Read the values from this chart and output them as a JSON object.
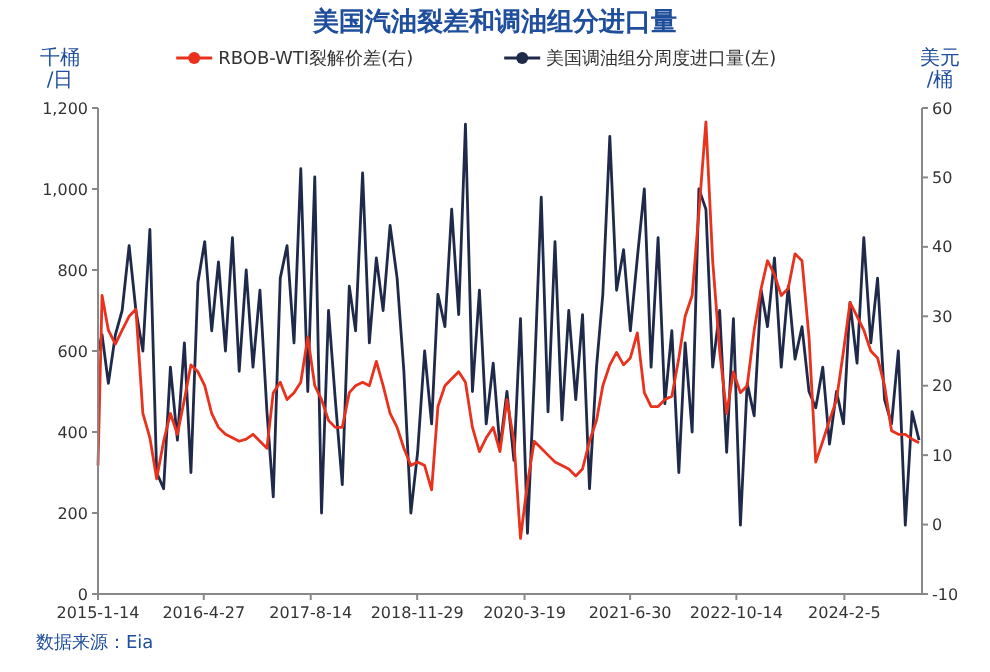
{
  "chart_data": {
    "type": "line",
    "title": "美国汽油裂差和调油组分进口量",
    "ylabel": "千桶/日",
    "y2label": "美元/桶",
    "legend": "top",
    "annotations": [
      "数据来源：Eia"
    ],
    "x": [
      "2015-01-14",
      "2015-02",
      "2015-03",
      "2015-04",
      "2015-05",
      "2015-06",
      "2015-07",
      "2015-08",
      "2015-09",
      "2015-10",
      "2015-11",
      "2015-12",
      "2016-01",
      "2016-02",
      "2016-03",
      "2016-04",
      "2016-05",
      "2016-06",
      "2016-07",
      "2016-08",
      "2016-09",
      "2016-10",
      "2016-11",
      "2016-12",
      "2017-01",
      "2017-02",
      "2017-03",
      "2017-04",
      "2017-05",
      "2017-06",
      "2017-07",
      "2017-08",
      "2017-09",
      "2017-10",
      "2017-11",
      "2017-12",
      "2018-01",
      "2018-02",
      "2018-03",
      "2018-04",
      "2018-05",
      "2018-06",
      "2018-07",
      "2018-08",
      "2018-09",
      "2018-10",
      "2018-11",
      "2018-12",
      "2019-01",
      "2019-02",
      "2019-03",
      "2019-04",
      "2019-05",
      "2019-06",
      "2019-07",
      "2019-08",
      "2019-09",
      "2019-10",
      "2019-11",
      "2019-12",
      "2020-01",
      "2020-02",
      "2020-03",
      "2020-04",
      "2020-05",
      "2020-06",
      "2020-07",
      "2020-08",
      "2020-09",
      "2020-10",
      "2020-11",
      "2020-12",
      "2021-01",
      "2021-02",
      "2021-03",
      "2021-04",
      "2021-05",
      "2021-06",
      "2021-07",
      "2021-08",
      "2021-09",
      "2021-10",
      "2021-11",
      "2021-12",
      "2022-01",
      "2022-02",
      "2022-03",
      "2022-04",
      "2022-05",
      "2022-06",
      "2022-07",
      "2022-08",
      "2022-09",
      "2022-10",
      "2022-11",
      "2022-12",
      "2023-01",
      "2023-02",
      "2023-03",
      "2023-04",
      "2023-05",
      "2023-06",
      "2023-07",
      "2023-08",
      "2023-09",
      "2023-10",
      "2023-11",
      "2023-12",
      "2024-01",
      "2024-02",
      "2024-03",
      "2024-04",
      "2024-05",
      "2024-06",
      "2024-07",
      "2024-08",
      "2024-09",
      "2024-10",
      "2024-11",
      "2024-12",
      "2025-01"
    ],
    "series": [
      {
        "name": "RBOB-WTI裂解价差(右)",
        "color": "#e8321e",
        "axis": "y2",
        "values": [
          8.5,
          33,
          28,
          26,
          28,
          30,
          31,
          16,
          12.5,
          6.6,
          12,
          16,
          13,
          18,
          23,
          22,
          20,
          16,
          14,
          13,
          12.5,
          12,
          12.3,
          13,
          12,
          11,
          19,
          20.5,
          18,
          19,
          20.5,
          27,
          20,
          18,
          15,
          14,
          14,
          19,
          20,
          20.5,
          20,
          23.5,
          20,
          16,
          14,
          11,
          8.5,
          9,
          8.5,
          5,
          17,
          20,
          21,
          22,
          20.5,
          14,
          10.5,
          12.5,
          14,
          10.5,
          18,
          12,
          -2,
          6,
          12,
          11,
          10,
          9,
          8.5,
          8,
          7,
          8,
          12,
          15,
          20,
          23,
          24.8,
          23,
          24,
          27.6,
          19,
          17,
          17,
          18,
          18.5,
          24,
          30,
          33,
          45,
          58,
          38,
          25,
          16,
          22,
          19,
          20,
          28,
          34,
          38,
          36,
          33,
          34,
          39,
          38,
          27,
          9,
          12,
          15,
          18,
          25,
          32,
          30,
          28,
          25,
          24,
          20,
          13.5,
          13,
          13,
          12.3,
          11.8
        ]
      },
      {
        "name": "美国调油组分周度进口量(左)",
        "color": "#1f2a4a",
        "values": [
          600,
          640,
          520,
          640,
          700,
          860,
          700,
          600,
          900,
          300,
          260,
          560,
          380,
          620,
          300,
          770,
          870,
          650,
          820,
          600,
          880,
          550,
          800,
          560,
          750,
          450,
          240,
          780,
          860,
          620,
          1050,
          500,
          1030,
          200,
          700,
          480,
          270,
          760,
          650,
          1040,
          620,
          830,
          700,
          910,
          780,
          550,
          200,
          350,
          600,
          420,
          740,
          660,
          950,
          690,
          1160,
          500,
          750,
          420,
          570,
          360,
          500,
          330,
          680,
          150,
          530,
          980,
          450,
          870,
          430,
          700,
          480,
          690,
          260,
          560,
          740,
          1130,
          750,
          850,
          650,
          830,
          1000,
          560,
          880,
          470,
          650,
          300,
          620,
          400,
          1000,
          950,
          560,
          700,
          350,
          680,
          170,
          520,
          440,
          750,
          660,
          830,
          560,
          760,
          580,
          660,
          500,
          460,
          560,
          370,
          500,
          420,
          720,
          570,
          880,
          620,
          780,
          480,
          420,
          600,
          170,
          450,
          380
        ]
      }
    ],
    "xlim": [
      "2015-01-14",
      "2025-01-14"
    ],
    "xticks": [
      {
        "value": "2015-01-14",
        "label": "2015-1-14"
      },
      {
        "value": "2016-04-27",
        "label": "2016-4-27"
      },
      {
        "value": "2017-08-14",
        "label": "2017-8-14"
      },
      {
        "value": "2018-11-29",
        "label": "2018-11-29"
      },
      {
        "value": "2020-03-19",
        "label": "2020-3-19"
      },
      {
        "value": "2021-06-30",
        "label": "2021-6-30"
      },
      {
        "value": "2022-10-14",
        "label": "2022-10-14"
      },
      {
        "value": "2024-02-05",
        "label": "2024-2-5"
      }
    ],
    "ylim": [
      0,
      1200
    ],
    "yticks": [
      0,
      200,
      400,
      600,
      800,
      {
        "value": 1000,
        "label": "1,000"
      },
      {
        "value": 1200,
        "label": "1,200"
      }
    ],
    "y2lim": [
      -10,
      60
    ],
    "y2ticks": [
      -10,
      0,
      10,
      20,
      30,
      40,
      50,
      60
    ]
  }
}
